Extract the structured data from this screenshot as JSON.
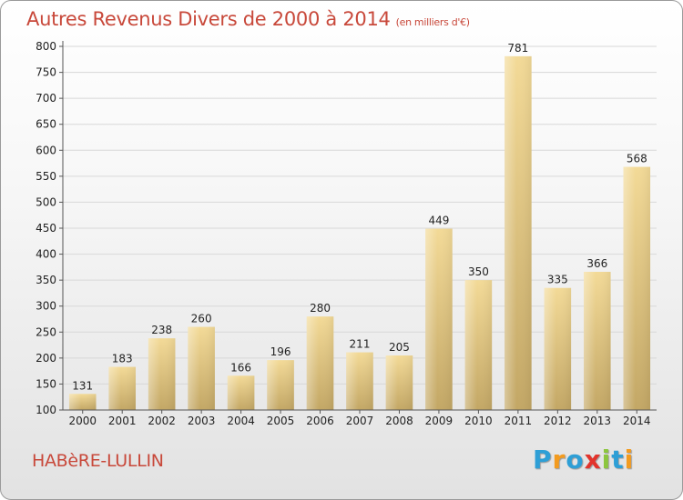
{
  "header": {
    "title": "Autres Revenus Divers de 2000 à 2014",
    "unit": "(en milliers d'€)"
  },
  "footer": {
    "commune": "HABèRE-LULLIN",
    "logo_text": "Proxiti",
    "logo_colors": [
      "#2e9fd6",
      "#f39b1f",
      "#2e9fd6",
      "#e2342c",
      "#8cc63e",
      "#2e9fd6",
      "#f39b1f"
    ]
  },
  "colors": {
    "title": "#c8483a",
    "bar_top": "#f3da97",
    "bar_bottom": "#c3a765",
    "grid": "#d8d8d8",
    "axis": "#555555"
  },
  "chart_data": {
    "type": "bar",
    "title": "Autres Revenus Divers de 2000 à 2014",
    "xlabel": "",
    "ylabel": "",
    "ylim": [
      100,
      800
    ],
    "yticks": [
      100,
      150,
      200,
      250,
      300,
      350,
      400,
      450,
      500,
      550,
      600,
      650,
      700,
      750,
      800
    ],
    "grid": true,
    "categories": [
      "2000",
      "2001",
      "2002",
      "2003",
      "2004",
      "2005",
      "2006",
      "2007",
      "2008",
      "2009",
      "2010",
      "2011",
      "2012",
      "2013",
      "2014"
    ],
    "values": [
      131,
      183,
      238,
      260,
      166,
      196,
      280,
      211,
      205,
      449,
      350,
      781,
      335,
      366,
      568
    ]
  }
}
